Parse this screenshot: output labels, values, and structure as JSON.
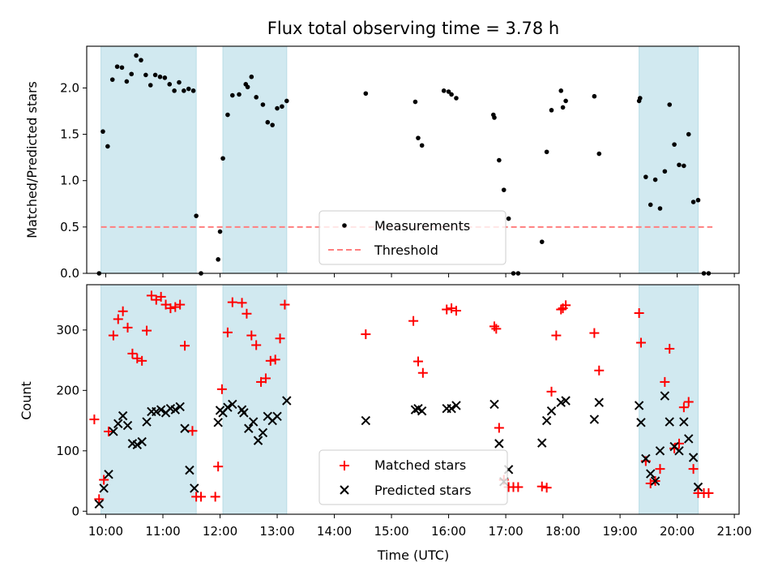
{
  "chart_data": [
    {
      "type": "scatter",
      "title": "Flux total observing time = 3.78 h",
      "xlabel": "",
      "ylabel": "Matched/Predicted stars",
      "xlim": [
        "09:40",
        "21:05"
      ],
      "ylim": [
        0,
        2.45
      ],
      "x_ticks": [
        "10:00",
        "11:00",
        "12:00",
        "13:00",
        "14:00",
        "15:00",
        "16:00",
        "17:00",
        "18:00",
        "19:00",
        "20:00",
        "21:00"
      ],
      "x_ticklabels_visible": false,
      "y_ticks": [
        0.0,
        0.5,
        1.0,
        1.5,
        2.0
      ],
      "y_ticklabels": [
        "0.0",
        "0.5",
        "1.0",
        "1.5",
        "2.0"
      ],
      "shaded_intervals": [
        [
          "09:55",
          "11:35"
        ],
        [
          "12:03",
          "13:10"
        ],
        [
          "19:20",
          "20:22"
        ]
      ],
      "shade_color": "#d1e9f0",
      "threshold_line": {
        "label": "Threshold",
        "y": 0.5,
        "x_from": "09:55",
        "x_to": "20:37",
        "color": "#ff7f7f"
      },
      "legend": {
        "position": "lower center",
        "entries": [
          "Measurements",
          "Threshold"
        ]
      },
      "series": [
        {
          "name": "Measurements",
          "marker": "dot",
          "color": "#000000",
          "points": [
            [
              "09:53",
              0.0
            ],
            [
              "09:57",
              1.53
            ],
            [
              "10:02",
              1.37
            ],
            [
              "10:07",
              2.09
            ],
            [
              "10:12",
              2.23
            ],
            [
              "10:17",
              2.22
            ],
            [
              "10:22",
              2.07
            ],
            [
              "10:27",
              2.15
            ],
            [
              "10:32",
              2.35
            ],
            [
              "10:37",
              2.3
            ],
            [
              "10:42",
              2.14
            ],
            [
              "10:47",
              2.03
            ],
            [
              "10:52",
              2.14
            ],
            [
              "10:57",
              2.12
            ],
            [
              "11:02",
              2.11
            ],
            [
              "11:07",
              2.04
            ],
            [
              "11:12",
              1.97
            ],
            [
              "11:17",
              2.06
            ],
            [
              "11:22",
              1.97
            ],
            [
              "11:27",
              1.99
            ],
            [
              "11:32",
              1.97
            ],
            [
              "11:35",
              0.62
            ],
            [
              "11:40",
              0.0
            ],
            [
              "11:58",
              0.15
            ],
            [
              "12:00",
              0.45
            ],
            [
              "12:03",
              1.24
            ],
            [
              "12:08",
              1.71
            ],
            [
              "12:13",
              1.92
            ],
            [
              "12:20",
              1.93
            ],
            [
              "12:27",
              2.04
            ],
            [
              "12:29",
              2.01
            ],
            [
              "12:33",
              2.12
            ],
            [
              "12:38",
              1.9
            ],
            [
              "12:45",
              1.82
            ],
            [
              "12:50",
              1.63
            ],
            [
              "12:55",
              1.6
            ],
            [
              "13:00",
              1.78
            ],
            [
              "13:05",
              1.8
            ],
            [
              "13:10",
              1.86
            ],
            [
              "14:33",
              1.94
            ],
            [
              "15:25",
              1.85
            ],
            [
              "15:28",
              1.46
            ],
            [
              "15:32",
              1.38
            ],
            [
              "15:55",
              1.97
            ],
            [
              "16:00",
              1.96
            ],
            [
              "16:03",
              1.93
            ],
            [
              "16:08",
              1.89
            ],
            [
              "16:47",
              1.71
            ],
            [
              "16:48",
              1.68
            ],
            [
              "16:53",
              1.22
            ],
            [
              "16:58",
              0.9
            ],
            [
              "17:03",
              0.59
            ],
            [
              "17:08",
              0.0
            ],
            [
              "17:13",
              0.0
            ],
            [
              "17:38",
              0.34
            ],
            [
              "17:43",
              1.31
            ],
            [
              "17:48",
              1.76
            ],
            [
              "17:58",
              1.97
            ],
            [
              "18:00",
              1.79
            ],
            [
              "18:03",
              1.86
            ],
            [
              "18:33",
              1.91
            ],
            [
              "18:38",
              1.29
            ],
            [
              "19:20",
              1.86
            ],
            [
              "19:21",
              1.89
            ],
            [
              "19:27",
              1.04
            ],
            [
              "19:32",
              0.74
            ],
            [
              "19:37",
              1.01
            ],
            [
              "19:42",
              0.7
            ],
            [
              "19:47",
              1.1
            ],
            [
              "19:52",
              1.82
            ],
            [
              "19:57",
              1.39
            ],
            [
              "20:02",
              1.17
            ],
            [
              "20:07",
              1.16
            ],
            [
              "20:12",
              1.5
            ],
            [
              "20:17",
              0.77
            ],
            [
              "20:22",
              0.79
            ],
            [
              "20:28",
              0.0
            ],
            [
              "20:33",
              0.0
            ]
          ]
        }
      ]
    },
    {
      "type": "scatter",
      "title": "",
      "xlabel": "Time (UTC)",
      "ylabel": "Count",
      "xlim": [
        "09:40",
        "21:05"
      ],
      "ylim": [
        -5,
        375
      ],
      "x_ticks": [
        "10:00",
        "11:00",
        "12:00",
        "13:00",
        "14:00",
        "15:00",
        "16:00",
        "17:00",
        "18:00",
        "19:00",
        "20:00",
        "21:00"
      ],
      "y_ticks": [
        0,
        100,
        200,
        300
      ],
      "shaded_intervals": [
        [
          "09:55",
          "11:35"
        ],
        [
          "12:03",
          "13:10"
        ],
        [
          "19:20",
          "20:22"
        ]
      ],
      "shade_color": "#d1e9f0",
      "legend": {
        "position": "lower center",
        "entries": [
          "Matched stars",
          "Predicted stars"
        ]
      },
      "series": [
        {
          "name": "Matched stars",
          "marker": "plus",
          "color": "#ff0000",
          "points": [
            [
              "09:48",
              152
            ],
            [
              "09:53",
              20
            ],
            [
              "09:58",
              52
            ],
            [
              "10:03",
              132
            ],
            [
              "10:08",
              291
            ],
            [
              "10:13",
              318
            ],
            [
              "10:18",
              331
            ],
            [
              "10:23",
              304
            ],
            [
              "10:28",
              261
            ],
            [
              "10:33",
              253
            ],
            [
              "10:38",
              249
            ],
            [
              "10:43",
              299
            ],
            [
              "10:48",
              357
            ],
            [
              "10:53",
              350
            ],
            [
              "10:58",
              355
            ],
            [
              "11:03",
              342
            ],
            [
              "11:08",
              336
            ],
            [
              "11:13",
              338
            ],
            [
              "11:18",
              342
            ],
            [
              "11:23",
              274
            ],
            [
              "11:31",
              133
            ],
            [
              "11:35",
              24
            ],
            [
              "11:40",
              24
            ],
            [
              "11:55",
              24
            ],
            [
              "11:58",
              74
            ],
            [
              "12:02",
              202
            ],
            [
              "12:08",
              296
            ],
            [
              "12:13",
              346
            ],
            [
              "12:23",
              345
            ],
            [
              "12:28",
              327
            ],
            [
              "12:33",
              291
            ],
            [
              "12:38",
              275
            ],
            [
              "12:43",
              214
            ],
            [
              "12:48",
              220
            ],
            [
              "12:53",
              249
            ],
            [
              "12:58",
              251
            ],
            [
              "13:03",
              286
            ],
            [
              "13:08",
              342
            ],
            [
              "14:33",
              293
            ],
            [
              "15:23",
              315
            ],
            [
              "15:28",
              248
            ],
            [
              "15:33",
              229
            ],
            [
              "15:58",
              334
            ],
            [
              "16:03",
              336
            ],
            [
              "16:08",
              332
            ],
            [
              "16:48",
              306
            ],
            [
              "16:50",
              302
            ],
            [
              "16:53",
              138
            ],
            [
              "16:58",
              52
            ],
            [
              "17:03",
              40
            ],
            [
              "17:08",
              40
            ],
            [
              "17:13",
              40
            ],
            [
              "17:38",
              41
            ],
            [
              "17:43",
              39
            ],
            [
              "17:48",
              198
            ],
            [
              "17:53",
              291
            ],
            [
              "17:58",
              334
            ],
            [
              "18:00",
              336
            ],
            [
              "18:03",
              341
            ],
            [
              "18:33",
              295
            ],
            [
              "18:38",
              233
            ],
            [
              "19:20",
              328
            ],
            [
              "19:22",
              279
            ],
            [
              "19:27",
              83
            ],
            [
              "19:32",
              46
            ],
            [
              "19:37",
              50
            ],
            [
              "19:42",
              70
            ],
            [
              "19:47",
              214
            ],
            [
              "19:52",
              269
            ],
            [
              "19:57",
              104
            ],
            [
              "20:02",
              112
            ],
            [
              "20:07",
              172
            ],
            [
              "20:12",
              181
            ],
            [
              "20:17",
              70
            ],
            [
              "20:22",
              30
            ],
            [
              "20:28",
              30
            ],
            [
              "20:33",
              30
            ]
          ]
        },
        {
          "name": "Predicted stars",
          "marker": "x",
          "color": "#000000",
          "points": [
            [
              "09:53",
              12
            ],
            [
              "09:58",
              38
            ],
            [
              "10:03",
              61
            ],
            [
              "10:08",
              132
            ],
            [
              "10:13",
              145
            ],
            [
              "10:18",
              158
            ],
            [
              "10:23",
              142
            ],
            [
              "10:28",
              112
            ],
            [
              "10:33",
              110
            ],
            [
              "10:38",
              115
            ],
            [
              "10:43",
              148
            ],
            [
              "10:48",
              165
            ],
            [
              "10:53",
              165
            ],
            [
              "10:58",
              168
            ],
            [
              "11:03",
              163
            ],
            [
              "11:08",
              170
            ],
            [
              "11:13",
              168
            ],
            [
              "11:18",
              173
            ],
            [
              "11:23",
              137
            ],
            [
              "11:28",
              68
            ],
            [
              "11:33",
              38
            ],
            [
              "11:58",
              147
            ],
            [
              "12:00",
              167
            ],
            [
              "12:03",
              163
            ],
            [
              "12:08",
              172
            ],
            [
              "12:13",
              177
            ],
            [
              "12:23",
              168
            ],
            [
              "12:25",
              163
            ],
            [
              "12:30",
              137
            ],
            [
              "12:35",
              148
            ],
            [
              "12:40",
              117
            ],
            [
              "12:45",
              130
            ],
            [
              "12:50",
              157
            ],
            [
              "12:55",
              150
            ],
            [
              "13:00",
              157
            ],
            [
              "13:10",
              183
            ],
            [
              "14:33",
              150
            ],
            [
              "15:25",
              168
            ],
            [
              "15:28",
              170
            ],
            [
              "15:32",
              166
            ],
            [
              "15:58",
              170
            ],
            [
              "16:03",
              170
            ],
            [
              "16:08",
              175
            ],
            [
              "16:48",
              177
            ],
            [
              "16:53",
              112
            ],
            [
              "16:58",
              49
            ],
            [
              "17:03",
              69
            ],
            [
              "17:38",
              113
            ],
            [
              "17:43",
              150
            ],
            [
              "17:48",
              166
            ],
            [
              "17:58",
              180
            ],
            [
              "18:03",
              183
            ],
            [
              "18:33",
              152
            ],
            [
              "18:38",
              180
            ],
            [
              "19:20",
              175
            ],
            [
              "19:22",
              147
            ],
            [
              "19:27",
              87
            ],
            [
              "19:32",
              62
            ],
            [
              "19:37",
              50
            ],
            [
              "19:42",
              100
            ],
            [
              "19:47",
              191
            ],
            [
              "19:52",
              148
            ],
            [
              "19:57",
              107
            ],
            [
              "20:02",
              100
            ],
            [
              "20:07",
              148
            ],
            [
              "20:12",
              120
            ],
            [
              "20:17",
              89
            ],
            [
              "20:22",
              40
            ]
          ]
        }
      ]
    }
  ]
}
